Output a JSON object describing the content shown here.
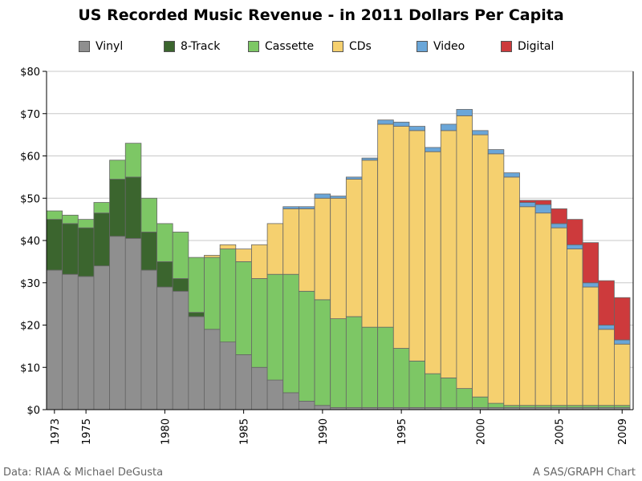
{
  "title": "US Recorded Music Revenue - in 2011 Dollars Per Capita",
  "footer": {
    "source": "Data: RIAA & Michael DeGusta",
    "credit": "A SAS/GRAPH Chart"
  },
  "colors": {
    "Vinyl": "#8f8f8f",
    "8-Track": "#3b652e",
    "Cassette": "#7dc765",
    "CDs": "#f5d06f",
    "Video": "#6aa6d8",
    "Digital": "#cd3a3c"
  },
  "chart_data": {
    "type": "bar",
    "stacked": true,
    "title": "US Recorded Music Revenue - in 2011 Dollars Per Capita",
    "xlabel": "",
    "ylabel": "",
    "ylim": [
      0,
      80
    ],
    "y_ticks": [
      "$0",
      "$10",
      "$20",
      "$30",
      "$40",
      "$50",
      "$60",
      "$70",
      "$80"
    ],
    "x_tick_labels": [
      "1973",
      "1975",
      "1980",
      "1985",
      "1990",
      "1995",
      "2000",
      "2005",
      "2009"
    ],
    "grid": true,
    "legend_position": "top",
    "categories": [
      1973,
      1974,
      1975,
      1976,
      1977,
      1978,
      1979,
      1980,
      1981,
      1982,
      1983,
      1984,
      1985,
      1986,
      1987,
      1988,
      1989,
      1990,
      1991,
      1992,
      1993,
      1994,
      1995,
      1996,
      1997,
      1998,
      1999,
      2000,
      2001,
      2002,
      2003,
      2004,
      2005,
      2006,
      2007,
      2008,
      2009
    ],
    "series": [
      {
        "name": "Vinyl",
        "values": [
          33,
          32,
          31.5,
          34,
          41,
          40.5,
          33,
          29,
          28,
          22,
          19,
          16,
          13,
          10,
          7,
          4,
          2,
          1,
          0.5,
          0.5,
          0.5,
          0.5,
          0.5,
          0.5,
          0.5,
          0.5,
          0.5,
          0.5,
          0.5,
          0.5,
          0.5,
          0.5,
          0.5,
          0.5,
          0.5,
          0.5,
          0.5
        ]
      },
      {
        "name": "8-Track",
        "values": [
          12,
          12,
          11.5,
          12.5,
          13.5,
          14.5,
          9,
          6,
          3,
          1,
          0,
          0,
          0,
          0,
          0,
          0,
          0,
          0,
          0,
          0,
          0,
          0,
          0,
          0,
          0,
          0,
          0,
          0,
          0,
          0,
          0,
          0,
          0,
          0,
          0,
          0,
          0
        ]
      },
      {
        "name": "Cassette",
        "values": [
          2,
          2,
          2,
          2.5,
          4.5,
          8,
          8,
          9,
          11,
          13,
          17,
          22,
          22,
          21,
          25,
          28,
          26,
          25,
          21,
          21.5,
          19,
          19,
          14,
          11,
          8,
          7,
          4.5,
          2.5,
          1,
          0.5,
          0.5,
          0.5,
          0.5,
          0.5,
          0.5,
          0.5,
          0.5
        ]
      },
      {
        "name": "CDs",
        "values": [
          0,
          0,
          0,
          0,
          0,
          0,
          0,
          0,
          0,
          0,
          0.5,
          1,
          3,
          8,
          12,
          15.5,
          19.5,
          24,
          28.5,
          32.5,
          39.5,
          48,
          52.5,
          54.5,
          52.5,
          58.5,
          64.5,
          62,
          59,
          54,
          47,
          45.5,
          42,
          37,
          28,
          18,
          14.5
        ]
      },
      {
        "name": "Video",
        "values": [
          0,
          0,
          0,
          0,
          0,
          0,
          0,
          0,
          0,
          0,
          0,
          0,
          0,
          0,
          0,
          0.5,
          0.5,
          1,
          0.5,
          0.5,
          0.5,
          1,
          1,
          1,
          1,
          1.5,
          1.5,
          1,
          1,
          1,
          1,
          2,
          1,
          1,
          1,
          1,
          1
        ]
      },
      {
        "name": "Digital",
        "values": [
          0,
          0,
          0,
          0,
          0,
          0,
          0,
          0,
          0,
          0,
          0,
          0,
          0,
          0,
          0,
          0,
          0,
          0,
          0,
          0,
          0,
          0,
          0,
          0,
          0,
          0,
          0,
          0,
          0,
          0,
          0.5,
          1,
          3.5,
          6,
          9.5,
          10.5,
          10
        ]
      }
    ]
  }
}
